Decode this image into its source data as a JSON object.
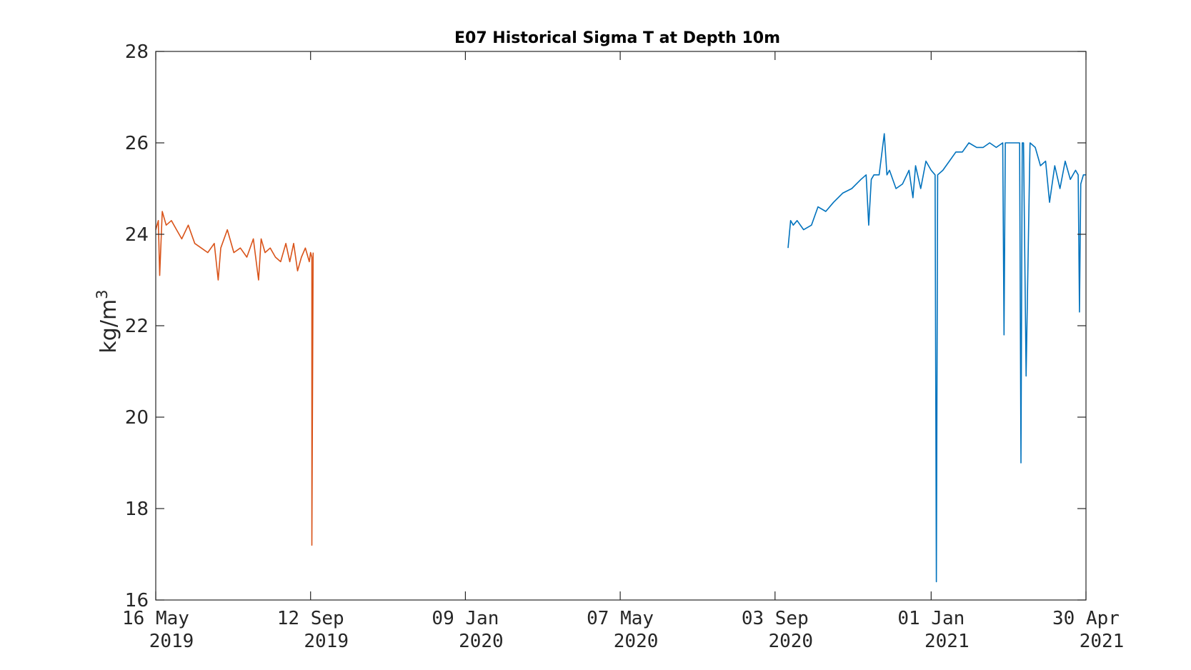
{
  "chart_data": {
    "type": "line",
    "title": "E07 Historical Sigma T at Depth 10m",
    "xlabel": "",
    "ylabel": "kg/m",
    "ylabel_superscript": "3",
    "ylim": [
      16,
      28
    ],
    "yticks": [
      16,
      18,
      20,
      22,
      24,
      26,
      28
    ],
    "xlim": [
      "2019-05-16",
      "2021-04-30"
    ],
    "xticks": [
      {
        "date": "2019-05-16",
        "line1": "16 May",
        "line2": "2019"
      },
      {
        "date": "2019-09-12",
        "line1": "12 Sep",
        "line2": "2019"
      },
      {
        "date": "2020-01-09",
        "line1": "09 Jan",
        "line2": "2020"
      },
      {
        "date": "2020-05-07",
        "line1": "07 May",
        "line2": "2020"
      },
      {
        "date": "2020-09-03",
        "line1": "03 Sep",
        "line2": "2020"
      },
      {
        "date": "2021-01-01",
        "line1": "01 Jan",
        "line2": "2021"
      },
      {
        "date": "2021-04-30",
        "line1": "30 Apr",
        "line2": "2021"
      }
    ],
    "grid": false,
    "series": [
      {
        "color": "#D95319",
        "x": [
          "2019-05-16",
          "2019-05-18",
          "2019-05-19",
          "2019-05-21",
          "2019-05-24",
          "2019-05-28",
          "2019-06-01",
          "2019-06-05",
          "2019-06-10",
          "2019-06-15",
          "2019-06-20",
          "2019-06-25",
          "2019-06-30",
          "2019-07-03",
          "2019-07-05",
          "2019-07-10",
          "2019-07-15",
          "2019-07-20",
          "2019-07-25",
          "2019-07-30",
          "2019-08-03",
          "2019-08-05",
          "2019-08-08",
          "2019-08-12",
          "2019-08-16",
          "2019-08-20",
          "2019-08-24",
          "2019-08-27",
          "2019-08-30",
          "2019-09-02",
          "2019-09-05",
          "2019-09-08",
          "2019-09-11",
          "2019-09-12",
          "2019-09-13",
          "2019-09-13",
          "2019-09-14"
        ],
        "y": [
          24.1,
          24.3,
          23.1,
          24.5,
          24.2,
          24.3,
          24.1,
          23.9,
          24.2,
          23.8,
          23.7,
          23.6,
          23.8,
          23.0,
          23.7,
          24.1,
          23.6,
          23.7,
          23.5,
          23.9,
          23.0,
          23.9,
          23.6,
          23.7,
          23.5,
          23.4,
          23.8,
          23.4,
          23.8,
          23.2,
          23.5,
          23.7,
          23.4,
          23.6,
          23.5,
          17.2,
          23.6
        ]
      },
      {
        "color": "#0072BD",
        "x": [
          "2020-09-13",
          "2020-09-15",
          "2020-09-17",
          "2020-09-20",
          "2020-09-25",
          "2020-10-01",
          "2020-10-06",
          "2020-10-12",
          "2020-10-18",
          "2020-10-25",
          "2020-11-01",
          "2020-11-08",
          "2020-11-12",
          "2020-11-14",
          "2020-11-16",
          "2020-11-18",
          "2020-11-22",
          "2020-11-26",
          "2020-11-28",
          "2020-11-30",
          "2020-12-05",
          "2020-12-10",
          "2020-12-15",
          "2020-12-18",
          "2020-12-20",
          "2020-12-24",
          "2020-12-28",
          "2021-01-01",
          "2021-01-04",
          "2021-01-05",
          "2021-01-06",
          "2021-01-10",
          "2021-01-15",
          "2021-01-20",
          "2021-01-25",
          "2021-01-30",
          "2021-02-05",
          "2021-02-10",
          "2021-02-15",
          "2021-02-20",
          "2021-02-25",
          "2021-02-26",
          "2021-02-27",
          "2021-03-03",
          "2021-03-08",
          "2021-03-10",
          "2021-03-11",
          "2021-03-12",
          "2021-03-13",
          "2021-03-15",
          "2021-03-18",
          "2021-03-22",
          "2021-03-26",
          "2021-03-30",
          "2021-04-02",
          "2021-04-06",
          "2021-04-10",
          "2021-04-14",
          "2021-04-18",
          "2021-04-22",
          "2021-04-24",
          "2021-04-25",
          "2021-04-26",
          "2021-04-28",
          "2021-04-30"
        ],
        "y": [
          23.7,
          24.3,
          24.2,
          24.3,
          24.1,
          24.2,
          24.6,
          24.5,
          24.7,
          24.9,
          25.0,
          25.2,
          25.3,
          24.2,
          25.2,
          25.3,
          25.3,
          26.2,
          25.3,
          25.4,
          25.0,
          25.1,
          25.4,
          24.8,
          25.5,
          25.0,
          25.6,
          25.4,
          25.3,
          16.4,
          25.3,
          25.4,
          25.6,
          25.8,
          25.8,
          26.0,
          25.9,
          25.9,
          26.0,
          25.9,
          26.0,
          21.8,
          26.0,
          26.0,
          26.0,
          26.0,
          19.0,
          26.0,
          26.0,
          20.9,
          26.0,
          25.9,
          25.5,
          25.6,
          24.7,
          25.5,
          25.0,
          25.6,
          25.2,
          25.4,
          25.3,
          22.3,
          25.1,
          25.3,
          25.3
        ]
      }
    ]
  }
}
